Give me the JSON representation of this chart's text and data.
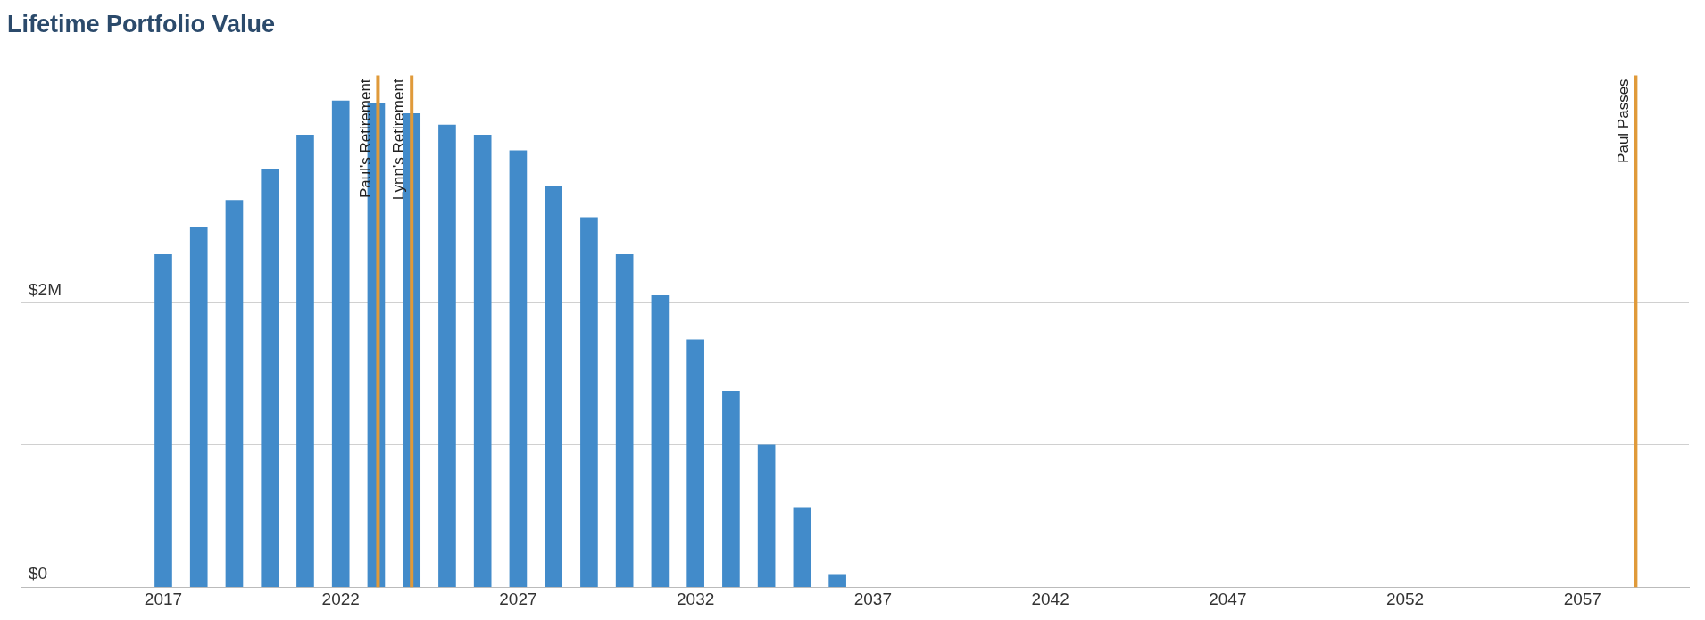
{
  "chart_data": {
    "type": "bar",
    "title": "Lifetime Portfolio Value",
    "x": [
      2017,
      2018,
      2019,
      2020,
      2021,
      2022,
      2023,
      2024,
      2025,
      2026,
      2027,
      2028,
      2029,
      2030,
      2031,
      2032,
      2033,
      2034,
      2035,
      2036
    ],
    "values": [
      2.34,
      2.53,
      2.72,
      2.94,
      3.18,
      3.42,
      3.4,
      3.33,
      3.25,
      3.18,
      3.07,
      2.82,
      2.6,
      2.34,
      2.05,
      1.74,
      1.38,
      1.0,
      0.56,
      0.09
    ],
    "color": "#428bca",
    "xlim": [
      2013,
      2060
    ],
    "xticks": [
      2017,
      2022,
      2027,
      2032,
      2037,
      2042,
      2047,
      2052,
      2057
    ],
    "ylim": [
      0,
      3.6
    ],
    "yticks": [
      {
        "value": 0,
        "label": "$0"
      },
      {
        "value": 1,
        "label": null
      },
      {
        "value": 2,
        "label": "$2M"
      },
      {
        "value": 3,
        "label": null
      }
    ],
    "grid": "y",
    "legend": false,
    "ref_lines": [
      {
        "axis": "x",
        "value": 2023.05,
        "label": "Paul's Retirement",
        "color": "#e09a3a"
      },
      {
        "axis": "x",
        "value": 2024.0,
        "label": "Lynn's Retirement",
        "color": "#e09a3a"
      },
      {
        "axis": "x",
        "value": 2058.5,
        "label": "Paul Passes",
        "color": "#e09a3a"
      }
    ]
  }
}
